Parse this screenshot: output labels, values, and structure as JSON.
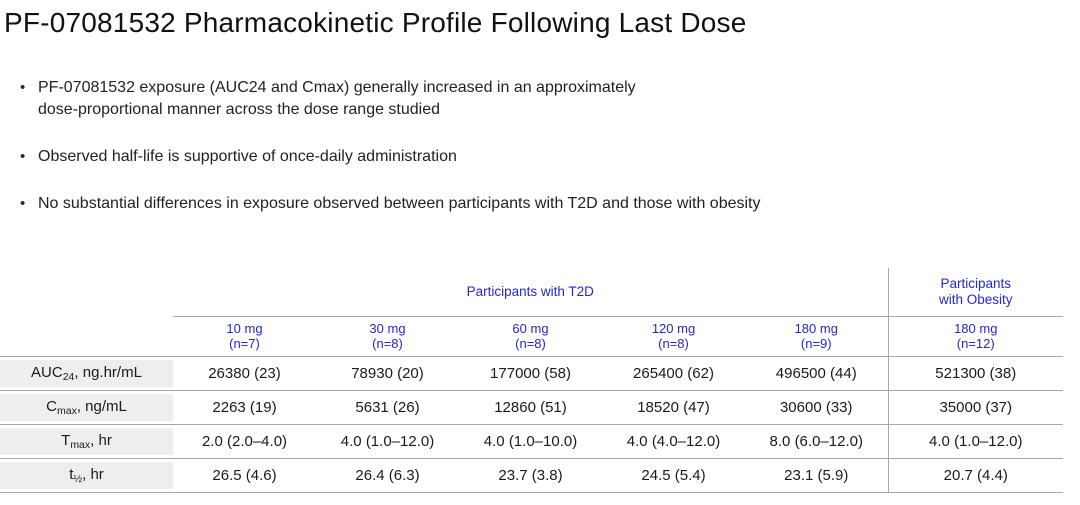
{
  "title": "PF-07081532 Pharmacokinetic Profile Following Last Dose",
  "bullets": [
    "PF-07081532 exposure (AUC24 and Cmax) generally increased in an approximately\ndose-proportional manner across the dose range studied",
    "Observed half-life is supportive of once-daily administration",
    "No substantial differences in exposure observed between participants with T2D and those with obesity"
  ],
  "bullet_marker": "•",
  "colors": {
    "header_blue": "#2626cc",
    "table_line_gray": "#a8a8a8",
    "row_label_bg": "#eeeeee",
    "text_black": "#1a1a1a"
  },
  "table": {
    "group_headers": {
      "t2d": "Participants with T2D",
      "obesity": "Participants\nwith Obesity"
    },
    "dose_headers": [
      {
        "dose": "10 mg",
        "n": "(n=7)"
      },
      {
        "dose": "30 mg",
        "n": "(n=8)"
      },
      {
        "dose": "60 mg",
        "n": "(n=8)"
      },
      {
        "dose": "120 mg",
        "n": "(n=8)"
      },
      {
        "dose": "180 mg",
        "n": "(n=9)"
      },
      {
        "dose": "180 mg",
        "n": "(n=12)"
      }
    ],
    "rows": [
      {
        "label": {
          "base": "AUC",
          "sub": "24",
          "rest": ", ng.hr/mL"
        },
        "values": [
          "26380 (23)",
          "78930 (20)",
          "177000 (58)",
          "265400 (62)",
          "496500 (44)",
          "521300 (38)"
        ]
      },
      {
        "label": {
          "base": "C",
          "sub": "max",
          "rest": ", ng/mL"
        },
        "values": [
          "2263 (19)",
          "5631 (26)",
          "12860 (51)",
          "18520 (47)",
          "30600 (33)",
          "35000 (37)"
        ]
      },
      {
        "label": {
          "base": "T",
          "sub": "max",
          "rest": ", hr"
        },
        "values": [
          "2.0 (2.0–4.0)",
          "4.0 (1.0–12.0)",
          "4.0 (1.0–10.0)",
          "4.0 (4.0–12.0)",
          "8.0 (6.0–12.0)",
          "4.0 (1.0–12.0)"
        ]
      },
      {
        "label": {
          "base": "t",
          "sub": "½",
          "rest": ", hr"
        },
        "values": [
          "26.5 (4.6)",
          "26.4 (6.3)",
          "23.7 (3.8)",
          "24.5 (5.4)",
          "23.1 (5.9)",
          "20.7 (4.4)"
        ]
      }
    ]
  }
}
